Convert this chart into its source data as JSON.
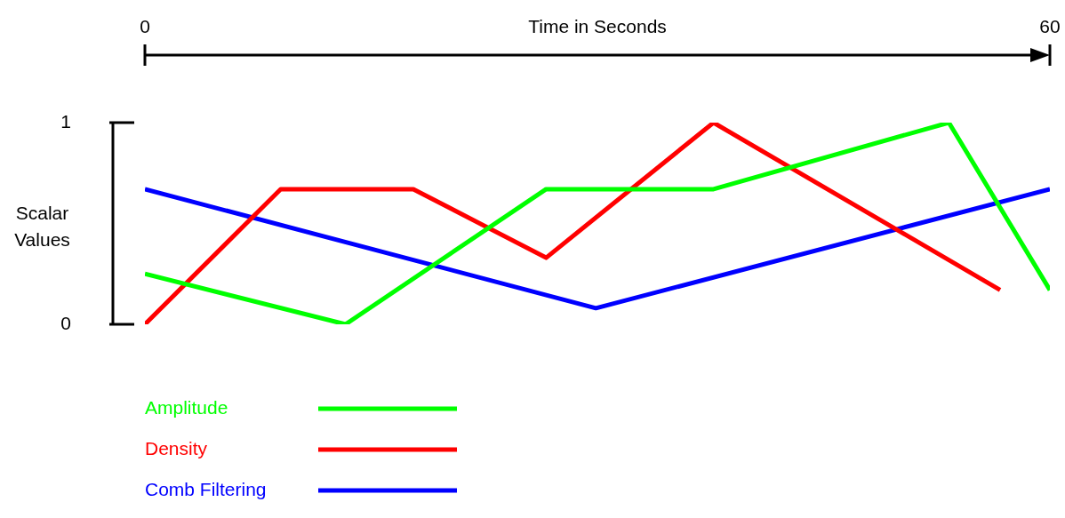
{
  "chart_data": {
    "type": "line",
    "xlabel": "Time in Seconds",
    "ylabel": "Scalar Values",
    "xlim": [
      0,
      60
    ],
    "xticks": [
      0,
      60
    ],
    "ylim": [
      0,
      1
    ],
    "yticks": [
      0,
      1
    ],
    "grid": false,
    "legend": "bottom left",
    "marker": "none",
    "line_style": "solid",
    "series": [
      {
        "name": "Amplitude",
        "color": "#00ff00",
        "x": [
          0,
          13.3,
          26.6,
          37.7,
          53.3,
          60
        ],
        "values": [
          0.25,
          0,
          0.67,
          0.67,
          1,
          0.17
        ]
      },
      {
        "name": "Density",
        "color": "#ff0000",
        "x": [
          0,
          9,
          17.8,
          26.6,
          37.7,
          56.7
        ],
        "values": [
          0,
          0.67,
          0.67,
          0.33,
          1,
          0.17
        ]
      },
      {
        "name": "Comb Filtering",
        "color": "#0000ff",
        "x": [
          0,
          29.9,
          60
        ],
        "values": [
          0.67,
          0.08,
          0.67
        ]
      }
    ]
  }
}
